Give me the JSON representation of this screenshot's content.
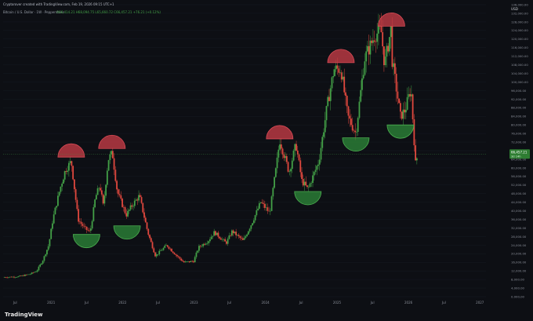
{
  "header": {
    "credit": "Cryptorover created with TradingView.com, Feb 19, 2026 09:15 UTC+1",
    "symbol_line": "Bitcoin / U.S. Dollar · 1W · Pepperstone",
    "ohlc_line": "O66,414.21  H68,094.75  L65,660.72  C66,457.21  +76.21 (+0.12%)"
  },
  "footer": {
    "brand": "TradingView"
  },
  "colors": {
    "background": "#0d0f14",
    "up": "#43a047",
    "down": "#e0483e",
    "top_marker": "#c23b45",
    "bottom_marker": "#2e8b3a",
    "price_label": "#2e7d32"
  },
  "chart_data": {
    "type": "candlestick",
    "currency_label": "USD",
    "y_axis_ticks": [
      "0.000,00",
      "4,000.00",
      "8,000.00",
      "12,000.00",
      "16,000.00",
      "20,000.00",
      "24,000.00",
      "28,000.00",
      "32,000.00",
      "36,000.00",
      "40,000.00",
      "44,000.00",
      "48,000.00",
      "52,000.00",
      "56,000.00",
      "60,000.00",
      "64,000.00",
      "68,000.00",
      "72,000.00",
      "76,000.00",
      "80,000.00",
      "84,000.00",
      "88,000.00",
      "92,000.00",
      "96,000.00",
      "100,000.00",
      "104,000.00",
      "108,000.00",
      "112,000.00",
      "116,000.00",
      "120,000.00",
      "124,000.00",
      "128,000.00",
      "132,000.00",
      "136,000.00"
    ],
    "y_range": [
      0,
      136000
    ],
    "x_axis_ticks": [
      "Jul",
      "2021",
      "Jul",
      "2022",
      "Jul",
      "2023",
      "Jul",
      "2024",
      "Jul",
      "2025",
      "Jul",
      "2026",
      "Jul",
      "2027"
    ],
    "x_range": [
      "2020-05-01",
      "2027-02-01"
    ],
    "current_price": {
      "value": 66457.21,
      "label": "66,457.21",
      "countdown": "3d 14h"
    },
    "price_path": [
      [
        "2020-05-01",
        9000
      ],
      [
        "2020-07-15",
        9300
      ],
      [
        "2020-09-15",
        10500
      ],
      [
        "2020-10-20",
        12000
      ],
      [
        "2020-11-20",
        17000
      ],
      [
        "2020-12-20",
        24000
      ],
      [
        "2021-01-10",
        36000
      ],
      [
        "2021-02-15",
        50000
      ],
      [
        "2021-03-15",
        59000
      ],
      [
        "2021-04-14",
        63000
      ],
      [
        "2021-05-19",
        36000
      ],
      [
        "2021-06-20",
        32000
      ],
      [
        "2021-07-20",
        30000
      ],
      [
        "2021-08-15",
        46000
      ],
      [
        "2021-09-07",
        52000
      ],
      [
        "2021-09-25",
        42000
      ],
      [
        "2021-10-20",
        64000
      ],
      [
        "2021-11-10",
        67000
      ],
      [
        "2021-12-05",
        49000
      ],
      [
        "2022-01-20",
        38000
      ],
      [
        "2022-02-15",
        42000
      ],
      [
        "2022-03-28",
        47000
      ],
      [
        "2022-05-10",
        30000
      ],
      [
        "2022-06-18",
        19000
      ],
      [
        "2022-08-15",
        24000
      ],
      [
        "2022-09-30",
        19500
      ],
      [
        "2022-11-10",
        16000
      ],
      [
        "2022-12-30",
        16500
      ],
      [
        "2023-01-25",
        23000
      ],
      [
        "2023-03-15",
        26000
      ],
      [
        "2023-04-15",
        30000
      ],
      [
        "2023-06-15",
        25000
      ],
      [
        "2023-07-15",
        30500
      ],
      [
        "2023-09-10",
        26000
      ],
      [
        "2023-10-25",
        34500
      ],
      [
        "2023-12-08",
        44000
      ],
      [
        "2024-01-23",
        39000
      ],
      [
        "2024-02-28",
        62000
      ],
      [
        "2024-03-14",
        73000
      ],
      [
        "2024-05-01",
        58000
      ],
      [
        "2024-06-05",
        71000
      ],
      [
        "2024-07-05",
        54000
      ],
      [
        "2024-08-05",
        50000
      ],
      [
        "2024-09-30",
        63000
      ],
      [
        "2024-11-12",
        89000
      ],
      [
        "2024-12-17",
        106000
      ],
      [
        "2025-01-21",
        106000
      ],
      [
        "2025-02-25",
        84000
      ],
      [
        "2025-04-07",
        76000
      ],
      [
        "2025-05-22",
        111000
      ],
      [
        "2025-07-14",
        122000
      ],
      [
        "2025-08-14",
        124000
      ],
      [
        "2025-09-01",
        108000
      ],
      [
        "2025-10-06",
        126000
      ],
      [
        "2025-10-10",
        110000
      ],
      [
        "2025-11-21",
        84000
      ],
      [
        "2025-12-15",
        87000
      ],
      [
        "2026-01-14",
        97000
      ],
      [
        "2026-02-06",
        62000
      ],
      [
        "2026-02-18",
        66457
      ]
    ],
    "annotations": [
      {
        "type": "top",
        "date": "2021-04-14",
        "value": 65000
      },
      {
        "type": "bottom",
        "date": "2021-07-01",
        "value": 29000
      },
      {
        "type": "top",
        "date": "2021-11-08",
        "value": 69000
      },
      {
        "type": "bottom",
        "date": "2022-01-24",
        "value": 33000
      },
      {
        "type": "top",
        "date": "2024-03-14",
        "value": 73500
      },
      {
        "type": "bottom",
        "date": "2024-08-05",
        "value": 49000
      },
      {
        "type": "top",
        "date": "2025-01-21",
        "value": 109000
      },
      {
        "type": "bottom",
        "date": "2025-04-07",
        "value": 74000
      },
      {
        "type": "top",
        "date": "2025-10-06",
        "value": 126000
      },
      {
        "type": "bottom",
        "date": "2025-11-21",
        "value": 80000
      }
    ]
  }
}
